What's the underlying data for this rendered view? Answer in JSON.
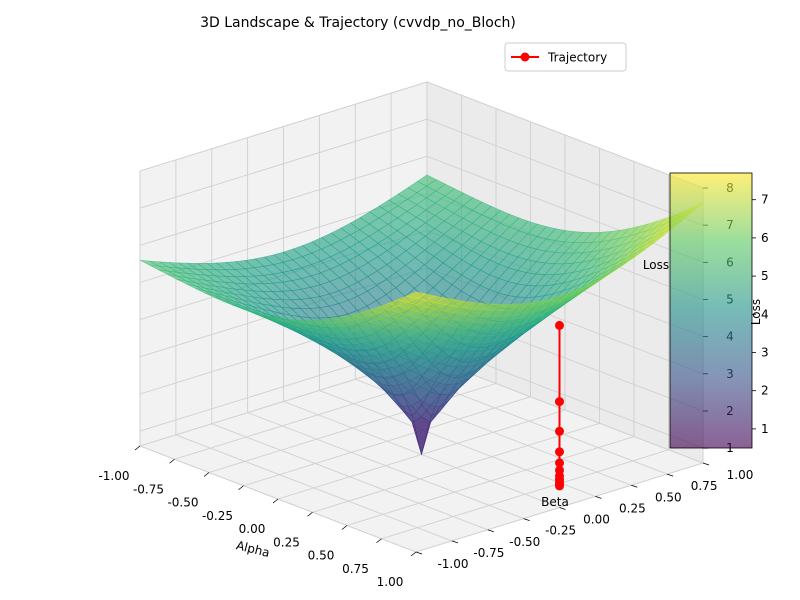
{
  "chart_data": {
    "type": "surface3d",
    "title": "3D Landscape & Trajectory (cvvdp_no_Bloch)",
    "xlabel": "Alpha",
    "ylabel": "Beta",
    "zlabel": "Loss",
    "xlim": [
      -1.0,
      1.0
    ],
    "ylim": [
      -1.0,
      1.0
    ],
    "zlim": [
      0.6,
      8.0
    ],
    "x_ticks": [
      "-1.00",
      "-0.75",
      "-0.50",
      "-0.25",
      "0.00",
      "0.25",
      "0.50",
      "0.75",
      "1.00"
    ],
    "y_ticks": [
      "-1.00",
      "-0.75",
      "-0.50",
      "-0.25",
      "0.00",
      "0.25",
      "0.50",
      "0.75",
      "1.00"
    ],
    "z_ticks": [
      "1",
      "2",
      "3",
      "4",
      "5",
      "6",
      "7",
      "8"
    ],
    "grid": true,
    "surface": {
      "colormap": "viridis",
      "alpha": 0.6,
      "min_at": [
        0.0,
        0.0
      ],
      "min_value": 0.6,
      "corner_values": {
        "alpha_-1_beta_-1": 5.6,
        "alpha_-1_beta_1": 5.5,
        "alpha_1_beta_-1": 7.6,
        "alpha_1_beta_1": 7.6
      }
    },
    "trajectory": {
      "name": "Trajectory",
      "color": "#ff0000",
      "alpha": [
        1.0,
        1.0,
        1.0,
        1.0,
        1.0,
        1.0,
        1.0,
        1.0,
        1.0,
        1.0,
        1.0
      ],
      "beta": [
        0.0,
        0.0,
        0.0,
        0.0,
        0.0,
        0.0,
        0.0,
        0.0,
        0.0,
        0.0,
        0.0
      ],
      "loss": [
        5.5,
        3.45,
        2.65,
        2.1,
        1.8,
        1.6,
        1.45,
        1.35,
        1.28,
        1.22,
        1.18
      ]
    },
    "legend": {
      "placement": "top-right",
      "entries": [
        "Trajectory"
      ]
    },
    "colorbar": {
      "label": "Loss",
      "range": [
        0.5,
        7.7
      ],
      "ticks": [
        "1",
        "2",
        "3",
        "4",
        "5",
        "6",
        "7"
      ]
    }
  }
}
